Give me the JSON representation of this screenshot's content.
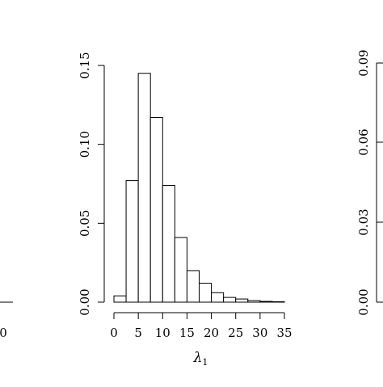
{
  "chart_data": {
    "type": "bar",
    "title": "",
    "xlabel": "λ",
    "xlabel_subscript": "1",
    "ylabel": "",
    "bin_width": 2.5,
    "xlim": [
      0,
      35
    ],
    "ylim": [
      0,
      0.15
    ],
    "x_ticks": [
      0,
      5,
      10,
      15,
      20,
      25,
      30,
      35
    ],
    "x_tick_labels": [
      "0",
      "5",
      "10",
      "15",
      "20",
      "25",
      "30",
      "35"
    ],
    "y_ticks": [
      0,
      0.05,
      0.1,
      0.15
    ],
    "y_tick_labels": [
      "0.00",
      "0.05",
      "0.10",
      "0.15"
    ],
    "bins": [
      {
        "from": 0,
        "to": 2.5,
        "value": 0.004
      },
      {
        "from": 2.5,
        "to": 5,
        "value": 0.077
      },
      {
        "from": 5,
        "to": 7.5,
        "value": 0.145
      },
      {
        "from": 7.5,
        "to": 10,
        "value": 0.117
      },
      {
        "from": 10,
        "to": 12.5,
        "value": 0.074
      },
      {
        "from": 12.5,
        "to": 15,
        "value": 0.041
      },
      {
        "from": 15,
        "to": 17.5,
        "value": 0.02
      },
      {
        "from": 17.5,
        "to": 20,
        "value": 0.012
      },
      {
        "from": 20,
        "to": 22.5,
        "value": 0.006
      },
      {
        "from": 22.5,
        "to": 25,
        "value": 0.003
      },
      {
        "from": 25,
        "to": 27.5,
        "value": 0.002
      },
      {
        "from": 27.5,
        "to": 30,
        "value": 0.001
      },
      {
        "from": 30,
        "to": 32.5,
        "value": 0.0005
      },
      {
        "from": 32.5,
        "to": 35,
        "value": 0.0003
      }
    ],
    "grid": false,
    "legend": "none"
  },
  "neighbor_left": {
    "x_tick_label": "0"
  },
  "neighbor_right": {
    "y_tick_labels": [
      "0.00",
      "0.03",
      "0.06",
      "0.09"
    ]
  }
}
